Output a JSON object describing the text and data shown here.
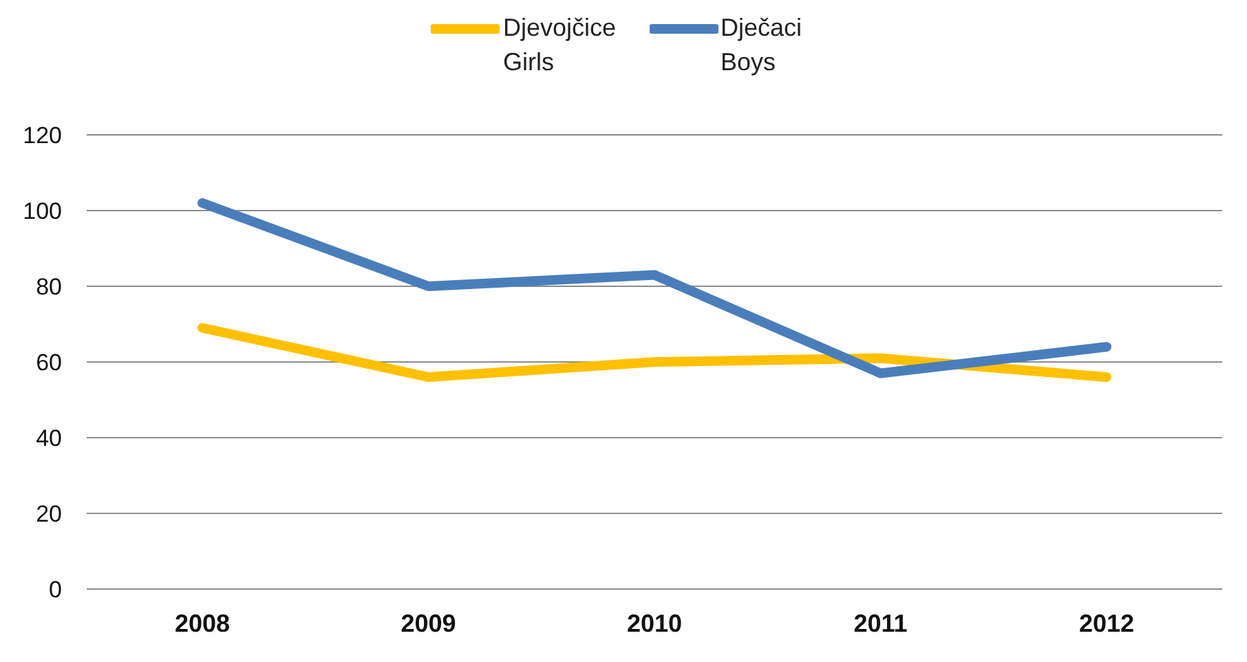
{
  "chart_data": {
    "type": "line",
    "categories": [
      "2008",
      "2009",
      "2010",
      "2011",
      "2012"
    ],
    "series": [
      {
        "name": "Djevojčice\nGirls",
        "color": "#ffc000",
        "values": [
          69,
          56,
          60,
          61,
          56
        ]
      },
      {
        "name": "Dječaci\nBoys",
        "color": "#4a7ebb",
        "values": [
          102,
          80,
          83,
          57,
          64
        ]
      }
    ],
    "ylim": [
      0,
      120
    ],
    "yticks": [
      0,
      20,
      40,
      60,
      80,
      100,
      120
    ],
    "grid": "y",
    "legend": "top",
    "marker": "none",
    "line_style": "solid"
  }
}
